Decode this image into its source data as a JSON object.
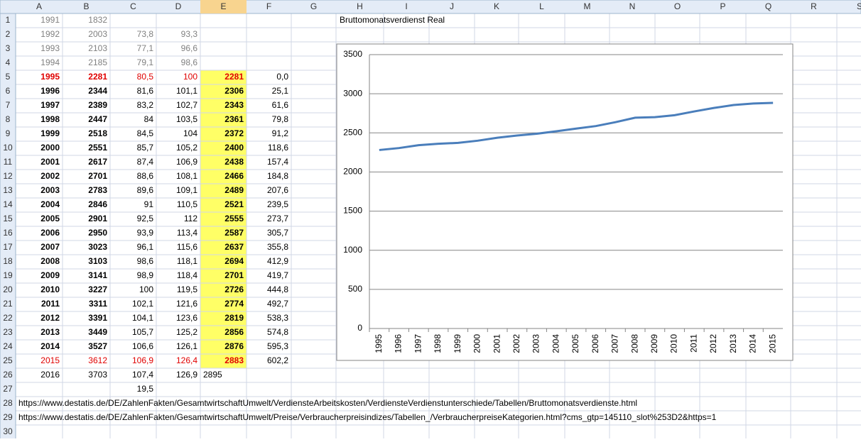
{
  "columns": [
    "A",
    "B",
    "C",
    "D",
    "E",
    "F",
    "G",
    "H",
    "I",
    "J",
    "K",
    "L",
    "M",
    "N",
    "O",
    "P",
    "Q",
    "R",
    "S"
  ],
  "rows": [
    {
      "number": 1,
      "cells": {
        "A": "1991",
        "B": "1832"
      }
    },
    {
      "number": 2,
      "cells": {
        "A": "1992",
        "B": "2003",
        "C": "73,8",
        "D": "93,3"
      }
    },
    {
      "number": 3,
      "cells": {
        "A": "1993",
        "B": "2103",
        "C": "77,1",
        "D": "96,6"
      }
    },
    {
      "number": 4,
      "cells": {
        "A": "1994",
        "B": "2185",
        "C": "79,1",
        "D": "98,6"
      }
    },
    {
      "number": 5,
      "cells": {
        "A": "1995",
        "B": "2281",
        "C": "80,5",
        "D": "100",
        "E": "2281",
        "F": "0,0"
      }
    },
    {
      "number": 6,
      "cells": {
        "A": "1996",
        "B": "2344",
        "C": "81,6",
        "D": "101,1",
        "E": "2306",
        "F": "25,1"
      }
    },
    {
      "number": 7,
      "cells": {
        "A": "1997",
        "B": "2389",
        "C": "83,2",
        "D": "102,7",
        "E": "2343",
        "F": "61,6"
      }
    },
    {
      "number": 8,
      "cells": {
        "A": "1998",
        "B": "2447",
        "C": "84",
        "D": "103,5",
        "E": "2361",
        "F": "79,8"
      }
    },
    {
      "number": 9,
      "cells": {
        "A": "1999",
        "B": "2518",
        "C": "84,5",
        "D": "104",
        "E": "2372",
        "F": "91,2"
      }
    },
    {
      "number": 10,
      "cells": {
        "A": "2000",
        "B": "2551",
        "C": "85,7",
        "D": "105,2",
        "E": "2400",
        "F": "118,6"
      }
    },
    {
      "number": 11,
      "cells": {
        "A": "2001",
        "B": "2617",
        "C": "87,4",
        "D": "106,9",
        "E": "2438",
        "F": "157,4"
      }
    },
    {
      "number": 12,
      "cells": {
        "A": "2002",
        "B": "2701",
        "C": "88,6",
        "D": "108,1",
        "E": "2466",
        "F": "184,8"
      }
    },
    {
      "number": 13,
      "cells": {
        "A": "2003",
        "B": "2783",
        "C": "89,6",
        "D": "109,1",
        "E": "2489",
        "F": "207,6"
      }
    },
    {
      "number": 14,
      "cells": {
        "A": "2004",
        "B": "2846",
        "C": "91",
        "D": "110,5",
        "E": "2521",
        "F": "239,5"
      }
    },
    {
      "number": 15,
      "cells": {
        "A": "2005",
        "B": "2901",
        "C": "92,5",
        "D": "112",
        "E": "2555",
        "F": "273,7"
      }
    },
    {
      "number": 16,
      "cells": {
        "A": "2006",
        "B": "2950",
        "C": "93,9",
        "D": "113,4",
        "E": "2587",
        "F": "305,7"
      }
    },
    {
      "number": 17,
      "cells": {
        "A": "2007",
        "B": "3023",
        "C": "96,1",
        "D": "115,6",
        "E": "2637",
        "F": "355,8"
      }
    },
    {
      "number": 18,
      "cells": {
        "A": "2008",
        "B": "3103",
        "C": "98,6",
        "D": "118,1",
        "E": "2694",
        "F": "412,9"
      }
    },
    {
      "number": 19,
      "cells": {
        "A": "2009",
        "B": "3141",
        "C": "98,9",
        "D": "118,4",
        "E": "2701",
        "F": "419,7"
      }
    },
    {
      "number": 20,
      "cells": {
        "A": "2010",
        "B": "3227",
        "C": "100",
        "D": "119,5",
        "E": "2726",
        "F": "444,8"
      }
    },
    {
      "number": 21,
      "cells": {
        "A": "2011",
        "B": "3311",
        "C": "102,1",
        "D": "121,6",
        "E": "2774",
        "F": "492,7"
      }
    },
    {
      "number": 22,
      "cells": {
        "A": "2012",
        "B": "3391",
        "C": "104,1",
        "D": "123,6",
        "E": "2819",
        "F": "538,3"
      }
    },
    {
      "number": 23,
      "cells": {
        "A": "2013",
        "B": "3449",
        "C": "105,7",
        "D": "125,2",
        "E": "2856",
        "F": "574,8"
      }
    },
    {
      "number": 24,
      "cells": {
        "A": "2014",
        "B": "3527",
        "C": "106,6",
        "D": "126,1",
        "E": "2876",
        "F": "595,3"
      }
    },
    {
      "number": 25,
      "cells": {
        "A": "2015",
        "B": "3612",
        "C": "106,9",
        "D": "126,4",
        "E": "2883",
        "F": "602,2"
      }
    },
    {
      "number": 26,
      "cells": {
        "A": "2016",
        "B": "3703",
        "C": "107,4",
        "D": "126,9",
        "E": "2895"
      }
    },
    {
      "number": 27,
      "cells": {
        "C": "19,5"
      }
    },
    {
      "number": 28,
      "cells": {
        "A": "https://www.destatis.de/DE/ZahlenFakten/GesamtwirtschaftUmwelt/VerdiensteArbeitskosten/VerdiensteVerdienstunterschiede/Tabellen/Bruttomonatsverdienste.html"
      }
    },
    {
      "number": 29,
      "cells": {
        "A": "https://www.destatis.de/DE/ZahlenFakten/GesamtwirtschaftUmwelt/Preise/Verbraucherpreisindizes/Tabellen_/VerbraucherpreiseKategorien.html?cms_gtp=145110_slot%253D2&https=1"
      }
    },
    {
      "number": 30
    }
  ],
  "chart": {
    "type": "line",
    "title": "Bruttomonatsverdienst Real",
    "categories": [
      "1995",
      "1996",
      "1997",
      "1998",
      "1999",
      "2000",
      "2001",
      "2002",
      "2003",
      "2004",
      "2005",
      "2006",
      "2007",
      "2008",
      "2009",
      "2010",
      "2011",
      "2012",
      "2013",
      "2014",
      "2015"
    ],
    "values": [
      2281,
      2306,
      2343,
      2361,
      2372,
      2400,
      2438,
      2466,
      2489,
      2521,
      2555,
      2587,
      2637,
      2694,
      2701,
      2726,
      2774,
      2819,
      2856,
      2876,
      2883
    ],
    "color": "#4a7ebb",
    "ylim": [
      0,
      3500
    ],
    "yticks": [
      0,
      500,
      1000,
      1500,
      2000,
      2500,
      3000,
      3500
    ],
    "grid": true
  }
}
